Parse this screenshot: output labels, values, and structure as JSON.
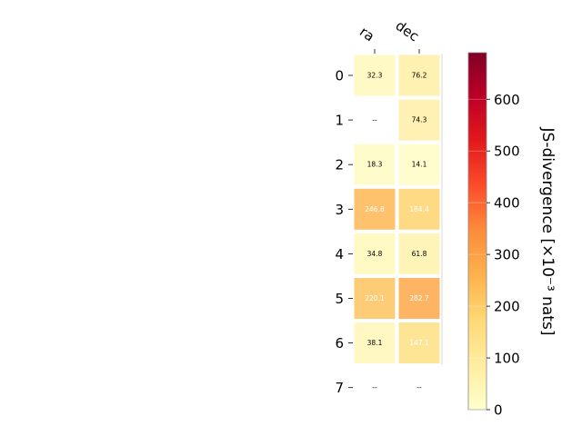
{
  "chart_data": {
    "type": "heatmap",
    "columns": [
      "ra",
      "dec"
    ],
    "rows": [
      "0",
      "1",
      "2",
      "3",
      "4",
      "5",
      "6",
      "7"
    ],
    "values": [
      [
        32.3,
        76.2
      ],
      [
        null,
        74.3
      ],
      [
        18.3,
        14.1
      ],
      [
        246.8,
        184.4
      ],
      [
        34.8,
        61.8
      ],
      [
        220.1,
        282.7
      ],
      [
        38.1,
        147.1
      ],
      [
        null,
        null
      ]
    ],
    "cell_labels": [
      [
        "32.3",
        "76.2"
      ],
      [
        "--",
        "74.3"
      ],
      [
        "18.3",
        "14.1"
      ],
      [
        "246.8",
        "184.4"
      ],
      [
        "34.8",
        "61.8"
      ],
      [
        "220.1",
        "282.7"
      ],
      [
        "38.1",
        "147.1"
      ],
      [
        "--",
        "--"
      ]
    ],
    "colorbar": {
      "label": "JS-divergence [×10⁻³ nats]",
      "range": [
        0,
        690
      ],
      "ticks": [
        0,
        100,
        200,
        300,
        400,
        500,
        600
      ],
      "colormap": "YlOrRd",
      "stops": [
        "#ffffcc",
        "#ffeda0",
        "#fed976",
        "#feb24c",
        "#fd8d3c",
        "#fc4e2a",
        "#e31a1c",
        "#bd0026",
        "#800026"
      ]
    },
    "missing_label": "--",
    "x_axis_position": "top"
  }
}
